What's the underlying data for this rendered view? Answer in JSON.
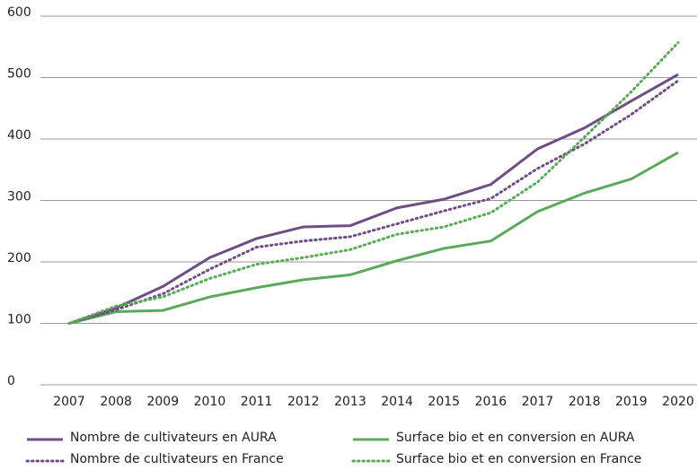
{
  "chart_data": {
    "type": "line",
    "categories": [
      "2007",
      "2008",
      "2009",
      "2010",
      "2011",
      "2012",
      "2013",
      "2014",
      "2015",
      "2016",
      "2017",
      "2018",
      "2019",
      "2020"
    ],
    "series": [
      {
        "name": "Nombre de cultivateurs en AURA",
        "color": "#6e4f82",
        "style": "solid",
        "values": [
          100,
          125,
          160,
          207,
          238,
          257,
          259,
          288,
          302,
          326,
          384,
          418,
          462,
          505
        ]
      },
      {
        "name": "Surface bio et en conversion en AURA",
        "color": "#5ca95c",
        "style": "solid",
        "values": [
          100,
          119,
          121,
          143,
          158,
          171,
          179,
          202,
          222,
          234,
          282,
          312,
          335,
          378
        ]
      },
      {
        "name": "Nombre de cultivateurs en France",
        "color": "#6e4f82",
        "style": "dotted",
        "values": [
          100,
          122,
          148,
          188,
          224,
          234,
          241,
          262,
          283,
          303,
          352,
          392,
          440,
          495
        ]
      },
      {
        "name": "Surface bio et en conversion en France",
        "color": "#5ca95c",
        "style": "dotted",
        "values": [
          100,
          128,
          143,
          173,
          196,
          207,
          220,
          245,
          257,
          280,
          330,
          403,
          477,
          557
        ]
      }
    ],
    "ylim": [
      0,
      600
    ],
    "yticks": [
      0,
      100,
      200,
      300,
      400,
      500,
      600
    ],
    "grid": true
  }
}
